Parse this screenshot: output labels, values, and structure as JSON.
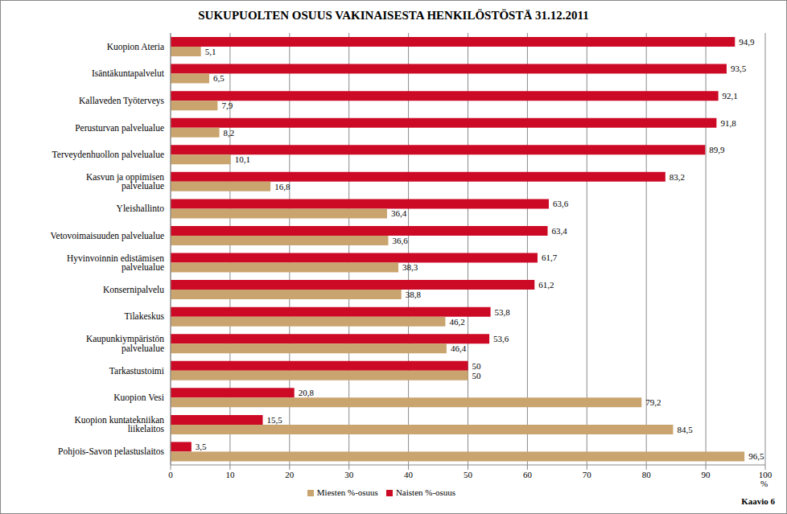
{
  "chart_data": {
    "type": "bar",
    "orientation": "horizontal",
    "title": "SUKUPUOLTEN OSUUS VAKINAISESTA HENKILÖSTÖSTÄ 31.12.2011",
    "x_label": "%",
    "annotations": [
      "Kaavio 6"
    ],
    "categories": [
      "Kuopion Ateria",
      "Isäntäkuntapalvelut",
      "Kallaveden Työterveys",
      "Perusturvan palvelualue",
      "Terveydenhuollon palvelualue",
      "Kasvun ja oppimisen palvelualue",
      "Yleishallinto",
      "Vetovoimaisuuden palvelualue",
      "Hyvinvoinnin edistämisen palvelualue",
      "Konsernipalvelu",
      "Tilakeskus",
      "Kaupunkiympäristön palvelualue",
      "Tarkastustoimi",
      "Kuopion Vesi",
      "Kuopion kuntatekniikan liikelaitos",
      "Pohjois-Savon pelastuslaitos"
    ],
    "series": [
      {
        "name": "Naisten %-osuus",
        "color": "#cc0a25",
        "values": [
          94.9,
          93.5,
          92.1,
          91.8,
          89.9,
          83.2,
          63.6,
          63.4,
          61.7,
          61.2,
          53.8,
          53.6,
          50,
          20.8,
          15.5,
          3.5
        ],
        "value_labels": [
          "94,9",
          "93,5",
          "92,1",
          "91,8",
          "89,9",
          "83,2",
          "63,6",
          "63,4",
          "61,7",
          "61,2",
          "53,8",
          "53,6",
          "50",
          "20,8",
          "15,5",
          "3,5"
        ]
      },
      {
        "name": "Miesten %-osuus",
        "color": "#c9a46e",
        "values": [
          5.1,
          6.5,
          7.9,
          8.2,
          10.1,
          16.8,
          36.4,
          36.6,
          38.3,
          38.8,
          46.2,
          46.4,
          50,
          79.2,
          84.5,
          96.5
        ],
        "value_labels": [
          "5,1",
          "6,5",
          "7,9",
          "8,2",
          "10,1",
          "16,8",
          "36,4",
          "36,6",
          "38,3",
          "38,8",
          "46,2",
          "46,4",
          "50",
          "79,2",
          "84,5",
          "96,5"
        ]
      }
    ],
    "xlim": [
      0,
      100
    ],
    "xticks": [
      0,
      10,
      20,
      30,
      40,
      50,
      60,
      70,
      80,
      90,
      100
    ],
    "grid": true,
    "data_labels": true,
    "legend": "bottom"
  }
}
